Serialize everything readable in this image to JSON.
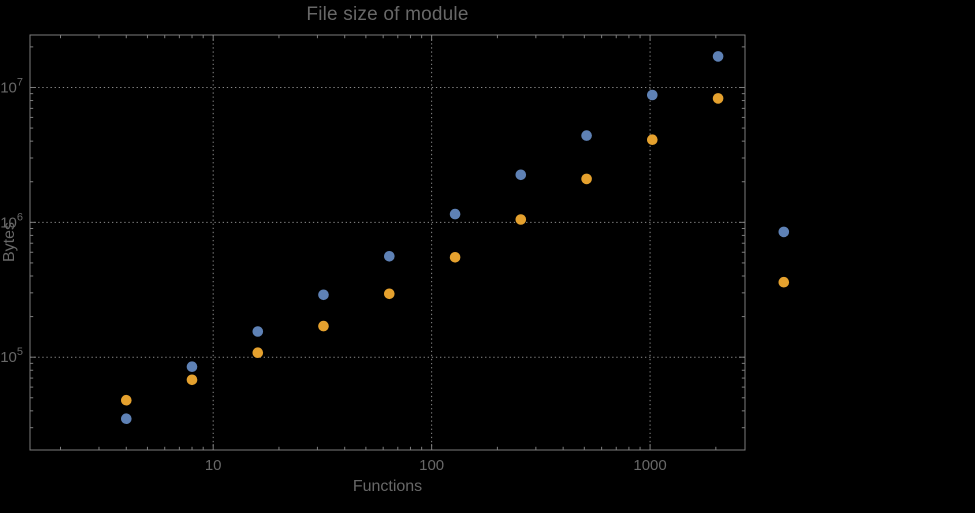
{
  "colors": {
    "background": "#000000",
    "series_blue": "#5e81b5",
    "series_orange": "#e5a12e",
    "frame": "#7d7d7d",
    "grid": "#8a8a8a",
    "text": "#686868"
  },
  "axes": {
    "x_scale": "log",
    "y_scale": "log",
    "x_ticks": [
      10,
      100,
      1000
    ],
    "x_tick_labels": [
      "10",
      "100",
      "1000"
    ],
    "y_ticks": [
      100000,
      1000000,
      10000000
    ],
    "y_tick_labels": [
      {
        "base": "10",
        "exp": "5"
      },
      {
        "base": "10",
        "exp": "6"
      },
      {
        "base": "10",
        "exp": "7"
      }
    ]
  },
  "chart_data": {
    "type": "scatter",
    "title": "File size of module",
    "xlabel": "Functions",
    "ylabel": "Bytes",
    "x_scale": "log",
    "y_scale": "log",
    "xlim": [
      1.45,
      2720
    ],
    "ylim": [
      20500,
      24500000
    ],
    "grid": "dotted gray lines at powers of 10, no legend",
    "x": [
      4,
      8,
      16,
      32,
      64,
      128,
      256,
      512,
      1024,
      2048,
      4096
    ],
    "series": [
      {
        "name": "blue-series",
        "color": "#5e81b5",
        "values": [
          35000,
          85000,
          155000,
          290000,
          560000,
          1150000,
          2250000,
          4400000,
          8800000,
          17000000,
          850000
        ]
      },
      {
        "name": "orange-series",
        "color": "#e5a12e",
        "values": [
          48000,
          68000,
          108000,
          170000,
          295000,
          550000,
          1050000,
          2100000,
          4100000,
          8300000,
          360000
        ]
      }
    ]
  }
}
